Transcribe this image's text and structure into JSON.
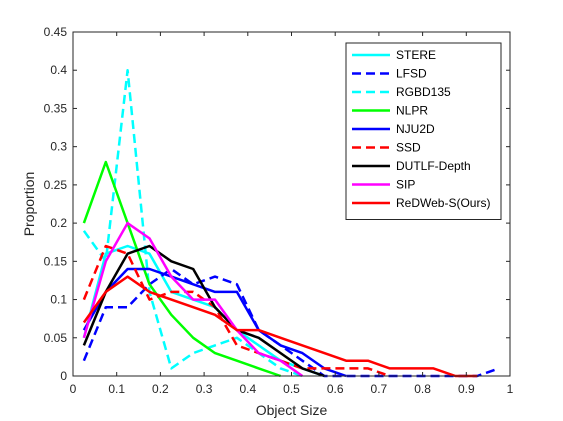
{
  "chart_data": {
    "type": "line",
    "title": "",
    "xlabel": "Object Size",
    "ylabel": "Proportion",
    "xlim": [
      0,
      1
    ],
    "ylim": [
      0,
      0.45
    ],
    "xticks": [
      0,
      0.1,
      0.2,
      0.3,
      0.4,
      0.5,
      0.6,
      0.7,
      0.8,
      0.9,
      1
    ],
    "xtick_labels": [
      "0",
      "0.1",
      "0.2",
      "0.3",
      "0.4",
      "0.5",
      "0.6",
      "0.7",
      "0.8",
      "0.9",
      "1"
    ],
    "yticks": [
      0,
      0.05,
      0.1,
      0.15,
      0.2,
      0.25,
      0.3,
      0.35,
      0.4,
      0.45
    ],
    "ytick_labels": [
      "0",
      "0.05",
      "0.1",
      "0.15",
      "0.2",
      "0.25",
      "0.3",
      "0.35",
      "0.4",
      "0.45"
    ],
    "grid": false,
    "legend_position": "top-right",
    "series": [
      {
        "name": "STERE",
        "color": "#00ffff",
        "dash": "solid",
        "width": 2.5,
        "x": [
          0.025,
          0.075,
          0.125,
          0.175,
          0.225,
          0.275,
          0.325,
          0.375,
          0.425,
          0.475,
          0.525,
          0.575
        ],
        "y": [
          0.05,
          0.16,
          0.17,
          0.16,
          0.11,
          0.1,
          0.09,
          0.06,
          0.04,
          0.02,
          0.01,
          0.0
        ]
      },
      {
        "name": "LFSD",
        "color": "#0000ff",
        "dash": "dashed",
        "width": 2.5,
        "x": [
          0.025,
          0.075,
          0.125,
          0.175,
          0.225,
          0.275,
          0.325,
          0.375,
          0.425,
          0.475,
          0.525,
          0.575,
          0.625,
          0.675,
          0.725,
          0.775,
          0.825,
          0.875,
          0.925,
          0.975
        ],
        "y": [
          0.02,
          0.09,
          0.09,
          0.12,
          0.14,
          0.12,
          0.13,
          0.12,
          0.06,
          0.04,
          0.02,
          0.0,
          0.0,
          0.0,
          0.0,
          0.0,
          0.0,
          0.0,
          0.0,
          0.01
        ]
      },
      {
        "name": "RGBD135",
        "color": "#00ffff",
        "dash": "dashed",
        "width": 2.5,
        "x": [
          0.025,
          0.075,
          0.125,
          0.175,
          0.225,
          0.275,
          0.325,
          0.375,
          0.425,
          0.475,
          0.525
        ],
        "y": [
          0.19,
          0.15,
          0.4,
          0.11,
          0.01,
          0.03,
          0.04,
          0.05,
          0.03,
          0.01,
          0.0
        ]
      },
      {
        "name": "NLPR",
        "color": "#00ff00",
        "dash": "solid",
        "width": 2.5,
        "x": [
          0.025,
          0.075,
          0.125,
          0.175,
          0.225,
          0.275,
          0.325,
          0.375,
          0.425,
          0.475
        ],
        "y": [
          0.2,
          0.28,
          0.2,
          0.12,
          0.08,
          0.05,
          0.03,
          0.02,
          0.01,
          0.0
        ]
      },
      {
        "name": "NJU2D",
        "color": "#0000ff",
        "dash": "solid",
        "width": 2.5,
        "x": [
          0.025,
          0.075,
          0.125,
          0.175,
          0.225,
          0.275,
          0.325,
          0.375,
          0.425,
          0.475,
          0.525,
          0.575,
          0.625
        ],
        "y": [
          0.06,
          0.11,
          0.14,
          0.14,
          0.13,
          0.12,
          0.11,
          0.11,
          0.06,
          0.04,
          0.03,
          0.01,
          0.0
        ]
      },
      {
        "name": "SSD",
        "color": "#ff0000",
        "dash": "dashed",
        "width": 2.5,
        "x": [
          0.025,
          0.075,
          0.125,
          0.175,
          0.225,
          0.275,
          0.325,
          0.375,
          0.425,
          0.475,
          0.525,
          0.575,
          0.625,
          0.675,
          0.725
        ],
        "y": [
          0.1,
          0.17,
          0.16,
          0.1,
          0.11,
          0.11,
          0.09,
          0.04,
          0.03,
          0.02,
          0.01,
          0.01,
          0.01,
          0.01,
          0.0
        ]
      },
      {
        "name": "DUTLF-Depth",
        "color": "#000000",
        "dash": "solid",
        "width": 2.5,
        "x": [
          0.025,
          0.075,
          0.125,
          0.175,
          0.225,
          0.275,
          0.325,
          0.375,
          0.425,
          0.475,
          0.525,
          0.575
        ],
        "y": [
          0.04,
          0.11,
          0.16,
          0.17,
          0.15,
          0.14,
          0.09,
          0.06,
          0.05,
          0.03,
          0.01,
          0.0
        ]
      },
      {
        "name": "SIP",
        "color": "#ff00ff",
        "dash": "solid",
        "width": 2.5,
        "x": [
          0.025,
          0.075,
          0.125,
          0.175,
          0.225,
          0.275,
          0.325,
          0.375,
          0.425,
          0.475,
          0.525
        ],
        "y": [
          0.05,
          0.15,
          0.2,
          0.18,
          0.13,
          0.1,
          0.1,
          0.06,
          0.03,
          0.02,
          0.0
        ]
      },
      {
        "name": "ReDWeb-S(Ours)",
        "color": "#ff0000",
        "dash": "solid",
        "width": 2.5,
        "x": [
          0.025,
          0.075,
          0.125,
          0.175,
          0.225,
          0.275,
          0.325,
          0.375,
          0.425,
          0.475,
          0.525,
          0.575,
          0.625,
          0.675,
          0.725,
          0.775,
          0.825,
          0.875,
          0.925
        ],
        "y": [
          0.07,
          0.11,
          0.13,
          0.11,
          0.1,
          0.09,
          0.08,
          0.06,
          0.06,
          0.05,
          0.04,
          0.03,
          0.02,
          0.02,
          0.01,
          0.01,
          0.01,
          0.0,
          0.0
        ]
      }
    ]
  }
}
